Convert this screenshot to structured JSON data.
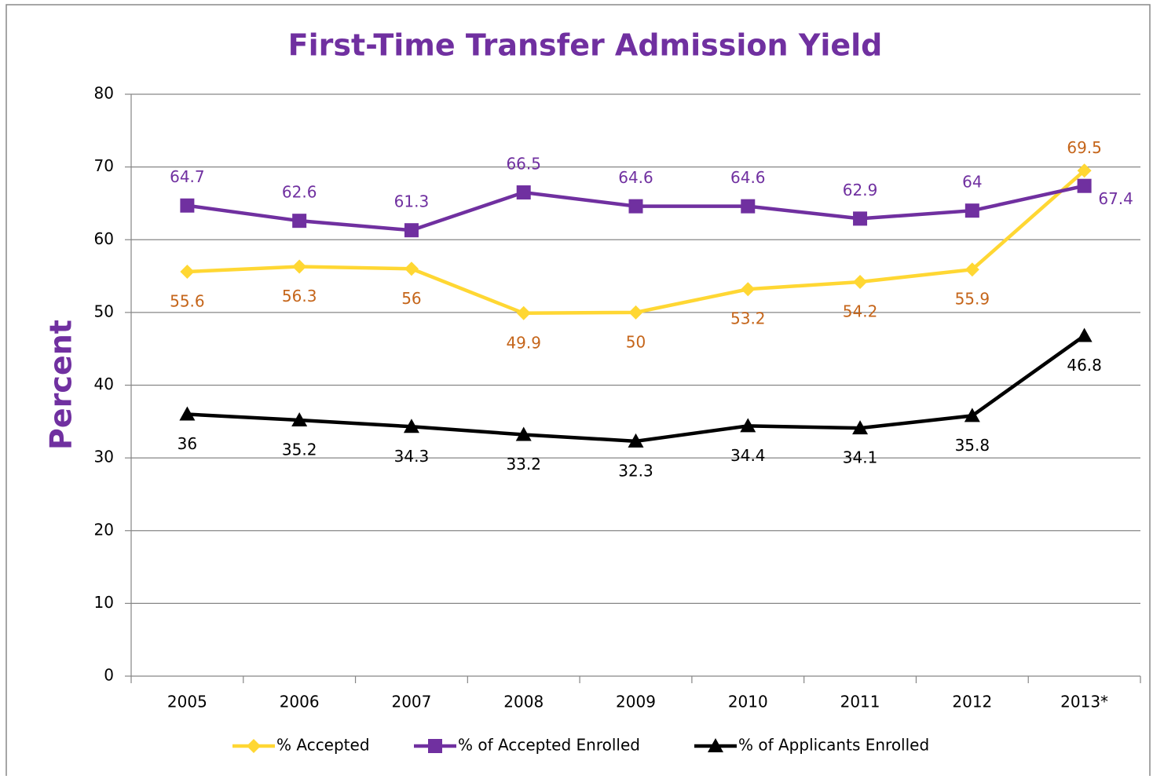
{
  "chart_data": {
    "type": "line",
    "title": "First-Time Transfer Admission Yield",
    "y_label": "Percent",
    "categories": [
      "2005",
      "2006",
      "2007",
      "2008",
      "2009",
      "2010",
      "2011",
      "2012",
      "2013*"
    ],
    "series": [
      {
        "name": "% Accepted",
        "color": "#ffd733",
        "label_color": "#c5651a",
        "marker": "diamond",
        "values": [
          55.6,
          56.3,
          56,
          49.9,
          50,
          53.2,
          54.2,
          55.9,
          69.5
        ]
      },
      {
        "name": "% of Accepted Enrolled",
        "color": "#7030a0",
        "label_color": "#7030a0",
        "marker": "square",
        "values": [
          64.7,
          62.6,
          61.3,
          66.5,
          64.6,
          64.6,
          62.9,
          64,
          67.4
        ]
      },
      {
        "name": "% of Applicants Enrolled",
        "color": "#000000",
        "label_color": "#000000",
        "marker": "triangle",
        "values": [
          36,
          35.2,
          34.3,
          33.2,
          32.3,
          34.4,
          34.1,
          35.8,
          46.8
        ]
      }
    ],
    "ylim": [
      0,
      80
    ],
    "yticks": [
      0,
      10,
      20,
      30,
      40,
      50,
      60,
      70,
      80
    ],
    "grid": true,
    "legend": "bottom"
  }
}
